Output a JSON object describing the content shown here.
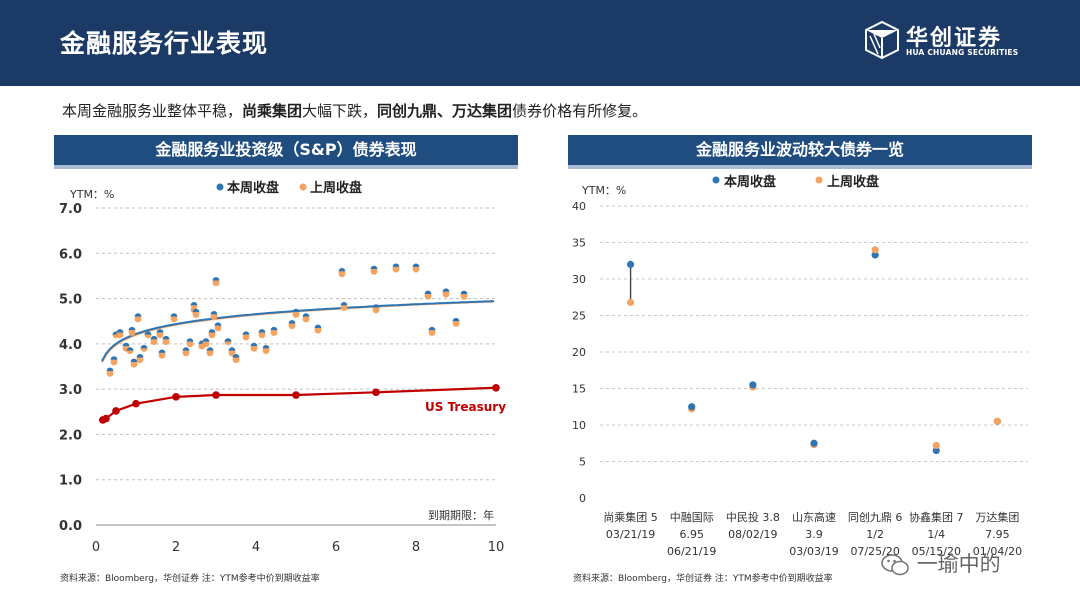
{
  "header": {
    "title": "金融服务行业表现"
  },
  "logo": {
    "cn": "华创证券",
    "en": "HUA CHUANG SECURITIES"
  },
  "summary": {
    "part1": "本周金融服务业整体平稳，",
    "bold1": "尚乘集团",
    "part2": "大幅下跌，",
    "bold2": "同创九鼎、万达集团",
    "part3": "债券价格有所修复。"
  },
  "colors": {
    "this_week": "#2e75b6",
    "last_week": "#f4a460",
    "treasury": "#c00000",
    "panel": "#1f4d80"
  },
  "chart_data": [
    {
      "type": "scatter",
      "title": "金融服务业投资级（S&P）债券表现",
      "ylabel": "YTM：%",
      "xlabel": "到期期限：年",
      "xlim": [
        0,
        10
      ],
      "ylim": [
        0,
        7
      ],
      "xticks": [
        "0",
        "2",
        "4",
        "6",
        "8",
        "10"
      ],
      "yticks": [
        "0.0",
        "1.0",
        "2.0",
        "3.0",
        "4.0",
        "5.0",
        "6.0",
        "7.0"
      ],
      "legend": [
        "本周收盘",
        "上周收盘"
      ],
      "series": [
        {
          "name": "本周收盘",
          "points": [
            [
              0.35,
              3.4
            ],
            [
              0.45,
              3.65
            ],
            [
              0.5,
              4.2
            ],
            [
              0.6,
              4.25
            ],
            [
              0.75,
              3.95
            ],
            [
              0.85,
              3.85
            ],
            [
              0.9,
              4.3
            ],
            [
              0.95,
              3.6
            ],
            [
              1.05,
              4.6
            ],
            [
              1.1,
              3.7
            ],
            [
              1.2,
              3.9
            ],
            [
              1.3,
              4.2
            ],
            [
              1.45,
              4.1
            ],
            [
              1.6,
              4.25
            ],
            [
              1.65,
              3.8
            ],
            [
              1.75,
              4.1
            ],
            [
              1.95,
              4.6
            ],
            [
              2.25,
              3.85
            ],
            [
              2.35,
              4.05
            ],
            [
              2.45,
              4.85
            ],
            [
              2.5,
              4.7
            ],
            [
              2.65,
              4.0
            ],
            [
              2.75,
              4.05
            ],
            [
              2.85,
              3.85
            ],
            [
              2.9,
              4.25
            ],
            [
              2.95,
              4.65
            ],
            [
              3.0,
              5.4
            ],
            [
              3.05,
              4.4
            ],
            [
              3.3,
              4.05
            ],
            [
              3.4,
              3.85
            ],
            [
              3.5,
              3.7
            ],
            [
              3.75,
              4.2
            ],
            [
              3.95,
              3.95
            ],
            [
              4.15,
              4.25
            ],
            [
              4.25,
              3.9
            ],
            [
              4.45,
              4.3
            ],
            [
              4.9,
              4.45
            ],
            [
              5.0,
              4.7
            ],
            [
              5.25,
              4.6
            ],
            [
              5.55,
              4.35
            ],
            [
              6.15,
              5.6
            ],
            [
              6.2,
              4.85
            ],
            [
              6.95,
              5.65
            ],
            [
              7.0,
              4.8
            ],
            [
              7.5,
              5.7
            ],
            [
              8.0,
              5.7
            ],
            [
              8.3,
              5.1
            ],
            [
              8.4,
              4.3
            ],
            [
              8.75,
              5.15
            ],
            [
              9.0,
              4.5
            ],
            [
              9.2,
              5.1
            ]
          ]
        },
        {
          "name": "上周收盘",
          "points": [
            [
              0.35,
              3.35
            ],
            [
              0.45,
              3.6
            ],
            [
              0.5,
              4.2
            ],
            [
              0.6,
              4.2
            ],
            [
              0.75,
              3.9
            ],
            [
              0.85,
              3.85
            ],
            [
              0.9,
              4.25
            ],
            [
              0.95,
              3.55
            ],
            [
              1.05,
              4.55
            ],
            [
              1.1,
              3.65
            ],
            [
              1.2,
              3.9
            ],
            [
              1.3,
              4.2
            ],
            [
              1.45,
              4.05
            ],
            [
              1.6,
              4.2
            ],
            [
              1.65,
              3.75
            ],
            [
              1.75,
              4.05
            ],
            [
              1.95,
              4.55
            ],
            [
              2.25,
              3.8
            ],
            [
              2.35,
              4.0
            ],
            [
              2.45,
              4.75
            ],
            [
              2.5,
              4.65
            ],
            [
              2.65,
              3.95
            ],
            [
              2.75,
              4.0
            ],
            [
              2.85,
              3.8
            ],
            [
              2.9,
              4.2
            ],
            [
              2.95,
              4.6
            ],
            [
              3.0,
              5.35
            ],
            [
              3.05,
              4.35
            ],
            [
              3.3,
              4.05
            ],
            [
              3.4,
              3.8
            ],
            [
              3.5,
              3.65
            ],
            [
              3.75,
              4.15
            ],
            [
              3.95,
              3.9
            ],
            [
              4.15,
              4.2
            ],
            [
              4.25,
              3.85
            ],
            [
              4.45,
              4.25
            ],
            [
              4.9,
              4.4
            ],
            [
              5.0,
              4.65
            ],
            [
              5.25,
              4.55
            ],
            [
              5.55,
              4.3
            ],
            [
              6.15,
              5.55
            ],
            [
              6.2,
              4.8
            ],
            [
              6.95,
              5.6
            ],
            [
              7.0,
              4.75
            ],
            [
              7.5,
              5.65
            ],
            [
              8.0,
              5.65
            ],
            [
              8.3,
              5.05
            ],
            [
              8.4,
              4.25
            ],
            [
              8.75,
              5.1
            ],
            [
              9.0,
              4.45
            ],
            [
              9.2,
              5.05
            ]
          ]
        },
        {
          "name": "US Treasury",
          "points": [
            [
              0.17,
              2.32
            ],
            [
              0.25,
              2.35
            ],
            [
              0.5,
              2.52
            ],
            [
              1,
              2.68
            ],
            [
              2,
              2.83
            ],
            [
              3,
              2.87
            ],
            [
              5,
              2.87
            ],
            [
              7,
              2.93
            ],
            [
              10,
              3.03
            ]
          ]
        }
      ],
      "annotations": [
        "US Treasury"
      ]
    },
    {
      "type": "scatter",
      "title": "金融服务业波动较大债券一览",
      "ylabel": "YTM：%",
      "ylim": [
        0,
        40
      ],
      "yticks": [
        "0",
        "5",
        "10",
        "15",
        "20",
        "25",
        "30",
        "35",
        "40"
      ],
      "legend": [
        "本周收盘",
        "上周收盘"
      ],
      "categories": [
        [
          "尚乘集团 5",
          "03/21/19"
        ],
        [
          "中融国际",
          "6.95",
          "06/21/19"
        ],
        [
          "中民投 3.8",
          "08/02/19"
        ],
        [
          "山东高速",
          "3.9",
          "03/03/19"
        ],
        [
          "同创九鼎 6",
          "1/2",
          "07/25/20"
        ],
        [
          "协鑫集团 7",
          "1/4",
          "05/15/20"
        ],
        [
          "万达集团",
          "7.95",
          "01/04/20"
        ]
      ],
      "series": [
        {
          "name": "本周收盘",
          "values": [
            32.0,
            12.5,
            15.5,
            7.5,
            33.3,
            6.5,
            10.5
          ]
        },
        {
          "name": "上周收盘",
          "values": [
            26.8,
            12.2,
            15.2,
            7.3,
            34.0,
            7.2,
            10.5
          ]
        }
      ]
    }
  ],
  "sources": {
    "left": "资料来源：Bloomberg，华创证券      注：YTM参考中价到期收益率",
    "right": "资料来源：Bloomberg，华创证券      注：YTM参考中价到期收益率"
  },
  "watermark": "一瑜中的"
}
